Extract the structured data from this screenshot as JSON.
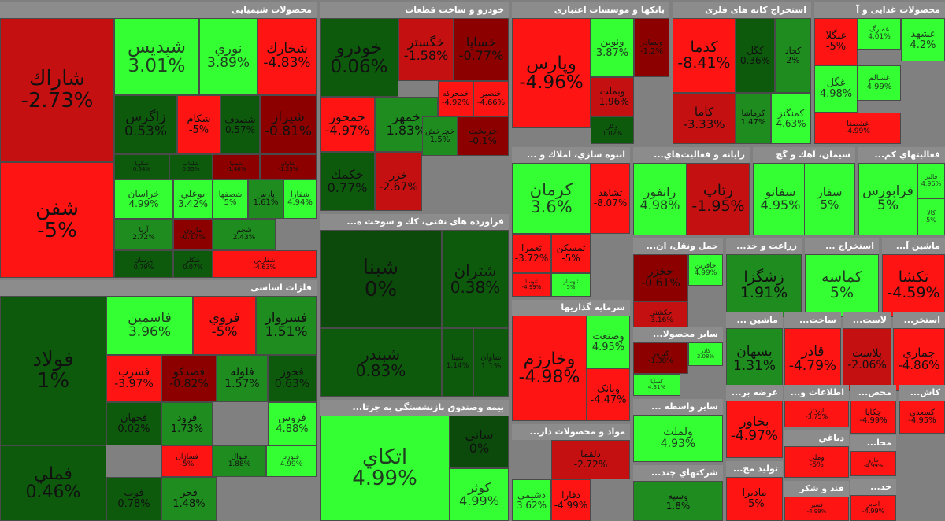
{
  "palette": {
    "pos_strong": "#33ff33",
    "pos_mid": "#1e8c1e",
    "pos_weak": "#0d5a0d",
    "zero": "#0b4a0b",
    "neg_weak": "#8c0000",
    "neg_mid": "#c41010",
    "neg_strong": "#ff1414"
  },
  "chart_data": {
    "type": "heatmap",
    "sectors": [
      {
        "name": "محصولات شیمیایی",
        "stocks": [
          {
            "name": "شاراك",
            "change": "-2.73%"
          },
          {
            "name": "شفن",
            "change": "-5%"
          },
          {
            "name": "شپدیس",
            "change": "3.01%"
          },
          {
            "name": "نوري",
            "change": "3.89%"
          },
          {
            "name": "شخارك",
            "change": "-4.83%"
          },
          {
            "name": "زاگرس",
            "change": "0.53%"
          },
          {
            "name": "شکام",
            "change": "-5%"
          },
          {
            "name": "شصدف",
            "change": "0.57%"
          },
          {
            "name": "شیراز",
            "change": "-0.81%"
          },
          {
            "name": "شگویا",
            "change": "0.54%"
          },
          {
            "name": "شلعاب",
            "change": "0.35%"
          },
          {
            "name": "شسپا",
            "change": "-1.46%"
          },
          {
            "name": "شاوان",
            "change": "-1.25%"
          },
          {
            "name": "خراسان",
            "change": "4.99%"
          },
          {
            "name": "بوعلي",
            "change": "3.42%"
          },
          {
            "name": "شصفها",
            "change": "5%"
          },
          {
            "name": "پارس",
            "change": "1.61%"
          },
          {
            "name": "شفارا",
            "change": "4.94%"
          },
          {
            "name": "آريا",
            "change": "2.72%"
          },
          {
            "name": "مارون",
            "change": "-0.17%"
          },
          {
            "name": "شجم",
            "change": "2.43%"
          },
          {
            "name": "پارسان",
            "change": "0.79%"
          },
          {
            "name": "شکلر",
            "change": "0.07%"
          },
          {
            "name": "شفارس",
            "change": "-4.63%"
          }
        ]
      },
      {
        "name": "خودرو و ساخت قطعات",
        "stocks": [
          {
            "name": "خودرو",
            "change": "0.06%"
          },
          {
            "name": "خگستر",
            "change": "-1.58%"
          },
          {
            "name": "خساپا",
            "change": "-0.77%"
          },
          {
            "name": "خمحور",
            "change": "-4.97%"
          },
          {
            "name": "خمهر",
            "change": "1.83%"
          },
          {
            "name": "خمحركه",
            "change": "-4.92%"
          },
          {
            "name": "خنصير",
            "change": "-4.66%"
          },
          {
            "name": "خكمك",
            "change": "0.77%"
          },
          {
            "name": "خزر",
            "change": "-2.67%"
          },
          {
            "name": "خچرخش",
            "change": "1.5%"
          },
          {
            "name": "خريخت",
            "change": "-0.1%"
          }
        ]
      },
      {
        "name": "بانکها و موسسات اعتباری",
        "stocks": [
          {
            "name": "وپارس",
            "change": "-4.96%"
          },
          {
            "name": "ونوين",
            "change": "3.87%"
          },
          {
            "name": "وبصادر",
            "change": "-1.2%"
          },
          {
            "name": "وبملت",
            "change": "-1.96%"
          },
          {
            "name": "وکار",
            "change": "1.02%"
          }
        ]
      },
      {
        "name": "استخراج کانه های فلزی",
        "stocks": [
          {
            "name": "کدما",
            "change": "-8.41%"
          },
          {
            "name": "کگل",
            "change": "0.36%"
          },
          {
            "name": "کچاد",
            "change": "2%"
          },
          {
            "name": "کاما",
            "change": "-3.33%"
          },
          {
            "name": "کرماشا",
            "change": "1.47%"
          },
          {
            "name": "کمنگنز",
            "change": "4.63%"
          }
        ]
      },
      {
        "name": "محصولات غذایی و آ",
        "stocks": [
          {
            "name": "غنگلا",
            "change": "-5%"
          },
          {
            "name": "غمارگ",
            "change": "4.01%"
          },
          {
            "name": "غشهد",
            "change": "4.2%"
          },
          {
            "name": "غگل",
            "change": "4.98%"
          },
          {
            "name": "غسالم",
            "change": "4.99%"
          },
          {
            "name": "غشصفا",
            "change": "-4.99%"
          }
        ]
      },
      {
        "name": "فلزات اساسی",
        "stocks": [
          {
            "name": "فولاد",
            "change": "1%"
          },
          {
            "name": "فملي",
            "change": "0.46%"
          },
          {
            "name": "فاسمین",
            "change": "3.96%"
          },
          {
            "name": "فروي",
            "change": "-5%"
          },
          {
            "name": "فسرواز",
            "change": "1.51%"
          },
          {
            "name": "فسرب",
            "change": "-3.97%"
          },
          {
            "name": "فصدکو",
            "change": "-0.82%"
          },
          {
            "name": "فلوله",
            "change": "1.57%"
          },
          {
            "name": "فخوز",
            "change": "0.63%"
          },
          {
            "name": "فجهان",
            "change": "0.02%"
          },
          {
            "name": "فرود",
            "change": "1.73%"
          },
          {
            "name": "فروس",
            "change": "4.88%"
          },
          {
            "name": "فسازان",
            "change": "-5%"
          },
          {
            "name": "فنوال",
            "change": "1.88%"
          },
          {
            "name": "فنورد",
            "change": "4.99%"
          },
          {
            "name": "فوب",
            "change": "0.78%"
          },
          {
            "name": "فجر",
            "change": "1.48%"
          }
        ]
      },
      {
        "name": "فراورده های نفتی، كك و سوخت ه...",
        "stocks": [
          {
            "name": "شبنا",
            "change": "0%"
          },
          {
            "name": "شتران",
            "change": "0.38%"
          },
          {
            "name": "شبندر",
            "change": "0.83%"
          },
          {
            "name": "شپنا",
            "change": "1.14%"
          },
          {
            "name": "شاوان",
            "change": "1.1%"
          }
        ]
      },
      {
        "name": "بیمه وصندوق بازنشستگي به جزتا...",
        "stocks": [
          {
            "name": "اتکاي",
            "change": "4.99%"
          },
          {
            "name": "ساني",
            "change": "0%"
          },
          {
            "name": "کوثر",
            "change": "4.99%"
          }
        ]
      },
      {
        "name": "انبوه سازي، املاك و ...",
        "stocks": [
          {
            "name": "كرمان",
            "change": "3.6%"
          },
          {
            "name": "ثشاهد",
            "change": "-8.07%"
          },
          {
            "name": "ثمسکن",
            "change": "-5%"
          },
          {
            "name": "ثعمرا",
            "change": "-3.72%"
          },
          {
            "name": "ثبهساز",
            "change": "5%"
          },
          {
            "name": "ثنوسا",
            "change": "-4.99%"
          }
        ]
      },
      {
        "name": "سرمايه گذاريها",
        "stocks": [
          {
            "name": "وخارزم",
            "change": "-4.98%"
          },
          {
            "name": "وصنعت",
            "change": "4.95%"
          },
          {
            "name": "وبانک",
            "change": "-4.47%"
          }
        ]
      },
      {
        "name": "مواد و محصولات دار...",
        "stocks": [
          {
            "name": "دشیمی",
            "change": "3.62%"
          },
          {
            "name": "دفارا",
            "change": "-4.99%"
          },
          {
            "name": "دلقما",
            "change": "-2.72%"
          }
        ]
      },
      {
        "name": "رايانه و فعالیت‌هاي...",
        "stocks": [
          {
            "name": "رانفور",
            "change": "4.98%"
          },
          {
            "name": "رتاپ",
            "change": "-1.95%"
          }
        ]
      },
      {
        "name": "حمل ونقل، ان...",
        "stocks": [
          {
            "name": "حخزر",
            "change": "-0.61%"
          },
          {
            "name": "حافرین",
            "change": "4.99%"
          },
          {
            "name": "حکشتی",
            "change": "-3.16%"
          }
        ]
      },
      {
        "name": "سایر محصولا...",
        "stocks": [
          {
            "name": "کاذر",
            "change": "3.08%"
          },
          {
            "name": "کساپا",
            "change": "4.31%"
          },
          {
            "name": "کپرور",
            "change": "-1.38%"
          }
        ]
      },
      {
        "name": "سایر واسطه ...",
        "stocks": [
          {
            "name": "ولملت",
            "change": "4.93%"
          }
        ]
      },
      {
        "name": "شرکتهاي چند...",
        "stocks": [
          {
            "name": "وسپه",
            "change": "1.8%"
          }
        ]
      },
      {
        "name": "سیمان، آهك و گچ",
        "stocks": [
          {
            "name": "سفانو",
            "change": "4.95%"
          },
          {
            "name": "سفار",
            "change": "5%"
          }
        ]
      },
      {
        "name": "فعالیتهاي کم...",
        "stocks": [
          {
            "name": "فرابورس",
            "change": "5%"
          },
          {
            "name": "فالبر",
            "change": "4.96%"
          },
          {
            "name": "کالا",
            "change": "5%"
          }
        ]
      },
      {
        "name": "زراعت و خد...",
        "stocks": [
          {
            "name": "زشگزا",
            "change": "1.91%"
          }
        ]
      },
      {
        "name": "استخراج ...",
        "stocks": [
          {
            "name": "کماسه",
            "change": "5%"
          }
        ]
      },
      {
        "name": "ماشین آ...",
        "stocks": [
          {
            "name": "تکشا",
            "change": "-4.59%"
          }
        ]
      },
      {
        "name": "ماشین ...",
        "stocks": [
          {
            "name": "بسهان",
            "change": "1.31%"
          }
        ]
      },
      {
        "name": "ساخت...",
        "stocks": [
          {
            "name": "قادر",
            "change": "-4.79%"
          }
        ]
      },
      {
        "name": "لاست...",
        "stocks": [
          {
            "name": "پلاست",
            "change": "-2.06%"
          }
        ]
      },
      {
        "name": "استخر...",
        "stocks": [
          {
            "name": "جماري",
            "change": "-4.86%"
          }
        ]
      },
      {
        "name": "عرضه بر...",
        "stocks": [
          {
            "name": "بخاور",
            "change": "-4.97%"
          }
        ]
      },
      {
        "name": "تولید مح...",
        "stocks": [
          {
            "name": "مادیرا",
            "change": "-5%"
          }
        ]
      },
      {
        "name": "اطلاعات و...",
        "stocks": [
          {
            "name": "اپرداز",
            "change": "-3.75%"
          }
        ]
      },
      {
        "name": "دباغي",
        "stocks": [
          {
            "name": "وملي",
            "change": "-5%"
          }
        ]
      },
      {
        "name": "قند و شکر",
        "stocks": [
          {
            "name": "قشیر",
            "change": "-4.99%"
          }
        ]
      },
      {
        "name": "محص...",
        "stocks": [
          {
            "name": "چکاپا",
            "change": "-4.99%"
          }
        ]
      },
      {
        "name": "کاش...",
        "stocks": [
          {
            "name": "کسعدي",
            "change": "-4.95%"
          }
        ]
      },
      {
        "name": "محا...",
        "stocks": [
          {
            "name": "مارو",
            "change": "-4.99%"
          }
        ]
      },
      {
        "name": "خد...",
        "stocks": [
          {
            "name": "اخابر",
            "change": "-4.99%"
          }
        ]
      }
    ]
  }
}
